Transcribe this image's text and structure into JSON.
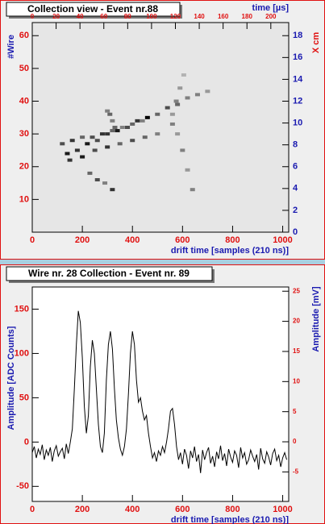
{
  "chart_data": [
    {
      "type": "heatmap",
      "title": "Collection view - Event nr.88",
      "xlabel": "drift time [samples (210 ns)]",
      "ylabel": "#Wire",
      "x2label": "time [µs]",
      "y2label": "X cm",
      "xlim": [
        0,
        1024
      ],
      "xticks": [
        0,
        200,
        400,
        600,
        800,
        1000
      ],
      "ylim": [
        0,
        64
      ],
      "yticks": [
        10,
        20,
        30,
        40,
        50,
        60
      ],
      "x2lim": [
        0,
        215
      ],
      "x2ticks": [
        0,
        20,
        40,
        60,
        80,
        100,
        120,
        140,
        160,
        180,
        200
      ],
      "y2lim": [
        0,
        19.2
      ],
      "y2ticks": [
        0,
        2,
        4,
        6,
        8,
        10,
        12,
        14,
        16,
        18
      ],
      "x": [
        140,
        180,
        220,
        260,
        300,
        340,
        380,
        420,
        460,
        500,
        540,
        580,
        620,
        660,
        700,
        150,
        200,
        250,
        300,
        350,
        400,
        450,
        500,
        120,
        160,
        200,
        240,
        280,
        320,
        360,
        400,
        440,
        230,
        260,
        290,
        320,
        300,
        310,
        320,
        330,
        560,
        580,
        600,
        620,
        640,
        560,
        575,
        590,
        605
      ],
      "y": [
        24,
        25,
        27,
        28,
        30,
        31,
        32,
        34,
        35,
        36,
        38,
        39,
        41,
        42,
        43,
        22,
        23,
        25,
        26,
        27,
        28,
        29,
        30,
        27,
        28,
        29,
        29,
        30,
        31,
        32,
        33,
        34,
        18,
        16,
        15,
        13,
        37,
        36,
        34,
        32,
        33,
        30,
        25,
        19,
        13,
        36,
        40,
        44,
        48
      ],
      "values": [
        0.9,
        0.8,
        0.9,
        0.7,
        0.8,
        0.9,
        0.7,
        0.8,
        1.0,
        0.6,
        0.7,
        0.6,
        0.5,
        0.5,
        0.4,
        0.8,
        0.9,
        0.7,
        0.8,
        0.6,
        0.7,
        0.6,
        0.5,
        0.7,
        0.8,
        0.6,
        0.7,
        0.8,
        0.6,
        0.5,
        0.6,
        0.5,
        0.6,
        0.7,
        0.5,
        0.8,
        0.5,
        0.6,
        0.5,
        0.6,
        0.5,
        0.4,
        0.5,
        0.4,
        0.5,
        0.4,
        0.5,
        0.4,
        0.3
      ]
    },
    {
      "type": "line",
      "title": "Wire nr. 28 Collection - Event nr. 89",
      "color": "#000000",
      "xlabel": "drift time [samples (210 ns)]",
      "ylabel": "Amplitude [ADC Counts]",
      "y2label": "Amplitude [mV]",
      "xlim": [
        0,
        1024
      ],
      "xticks": [
        0,
        200,
        400,
        600,
        800,
        1000
      ],
      "ylim": [
        -67,
        175
      ],
      "yticks": [
        -50,
        0,
        50,
        100,
        150
      ],
      "y2lim": [
        -9.9,
        25.7
      ],
      "y2ticks": [
        -5,
        0,
        5,
        10,
        15,
        20,
        25
      ],
      "x": [
        0,
        8,
        16,
        24,
        32,
        40,
        48,
        56,
        64,
        72,
        80,
        88,
        96,
        104,
        112,
        120,
        128,
        136,
        144,
        152,
        160,
        168,
        176,
        184,
        192,
        200,
        208,
        216,
        224,
        232,
        240,
        248,
        256,
        264,
        272,
        280,
        288,
        296,
        304,
        312,
        320,
        328,
        336,
        344,
        352,
        360,
        368,
        376,
        384,
        392,
        400,
        408,
        416,
        424,
        432,
        440,
        448,
        456,
        464,
        472,
        480,
        488,
        496,
        504,
        512,
        520,
        528,
        536,
        544,
        552,
        560,
        568,
        576,
        584,
        592,
        600,
        608,
        616,
        624,
        632,
        640,
        648,
        656,
        664,
        672,
        680,
        688,
        696,
        704,
        712,
        720,
        728,
        736,
        744,
        752,
        760,
        768,
        776,
        784,
        792,
        800,
        808,
        816,
        824,
        832,
        840,
        848,
        856,
        864,
        872,
        880,
        888,
        896,
        904,
        912,
        920,
        928,
        936,
        944,
        952,
        960,
        968,
        976,
        984,
        992,
        1000,
        1008,
        1016
      ],
      "values": [
        -12,
        -5,
        -18,
        -8,
        -14,
        -3,
        -20,
        -9,
        -15,
        -6,
        -22,
        -10,
        -4,
        -16,
        -11,
        -7,
        -19,
        -2,
        -13,
        0,
        15,
        60,
        110,
        148,
        135,
        95,
        40,
        10,
        30,
        85,
        115,
        100,
        60,
        20,
        -5,
        -12,
        10,
        70,
        110,
        125,
        105,
        60,
        25,
        5,
        -8,
        -15,
        -5,
        15,
        55,
        100,
        125,
        110,
        70,
        45,
        50,
        35,
        25,
        30,
        10,
        -5,
        -18,
        -12,
        -22,
        -10,
        -15,
        -5,
        -12,
        0,
        15,
        35,
        38,
        20,
        -5,
        -20,
        -12,
        -25,
        -8,
        -15,
        -30,
        -10,
        -18,
        -5,
        -22,
        -14,
        -35,
        -9,
        -20,
        -12,
        -6,
        -24,
        -16,
        -28,
        -11,
        -19,
        -4,
        -21,
        -13,
        -27,
        -8,
        -17,
        -23,
        -10,
        -15,
        -29,
        -6,
        -18,
        -12,
        -25,
        -20,
        -9,
        -16,
        -22,
        -14,
        -31,
        -7,
        -19,
        -24,
        -11,
        -17,
        -26,
        -13,
        -8,
        -21,
        -15,
        -28,
        -18,
        -12,
        -20
      ]
    }
  ]
}
